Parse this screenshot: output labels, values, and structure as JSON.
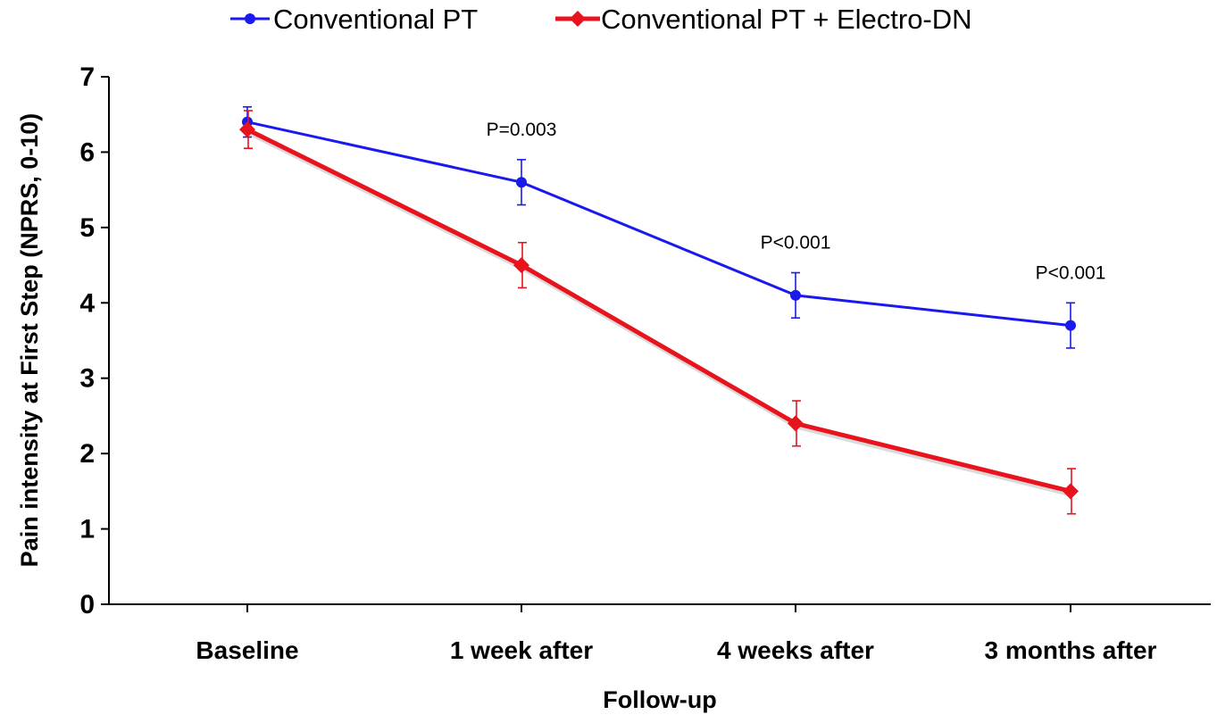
{
  "chart_data": {
    "type": "line",
    "categories": [
      "Baseline",
      "1 week after",
      "4 weeks after",
      "3 months after"
    ],
    "xlabel": "Follow-up",
    "ylabel": "Pain intensity at First Step (NPRS, 0-10)",
    "ylim": [
      0,
      7
    ],
    "yticks": [
      "0",
      "1",
      "2",
      "3",
      "4",
      "5",
      "6",
      "7"
    ],
    "legend_position": "top",
    "grid": false,
    "series": [
      {
        "name": "Conventional PT",
        "color": "#1a1aee",
        "marker": "circle",
        "values": [
          6.4,
          5.6,
          4.1,
          3.7
        ],
        "error": [
          0.2,
          0.3,
          0.3,
          0.3
        ]
      },
      {
        "name": "Conventional PT + Electro-DN",
        "color": "#e8131c",
        "marker": "diamond",
        "values": [
          6.3,
          4.5,
          2.4,
          1.5
        ],
        "error": [
          0.25,
          0.3,
          0.3,
          0.3
        ]
      }
    ],
    "annotations": [
      {
        "text": "P=0.003",
        "category": "1 week after",
        "y": 6.3
      },
      {
        "text": "P<0.001",
        "category": "4 weeks after",
        "y": 4.8
      },
      {
        "text": "P<0.001",
        "category": "3 months after",
        "y": 4.4
      }
    ]
  }
}
